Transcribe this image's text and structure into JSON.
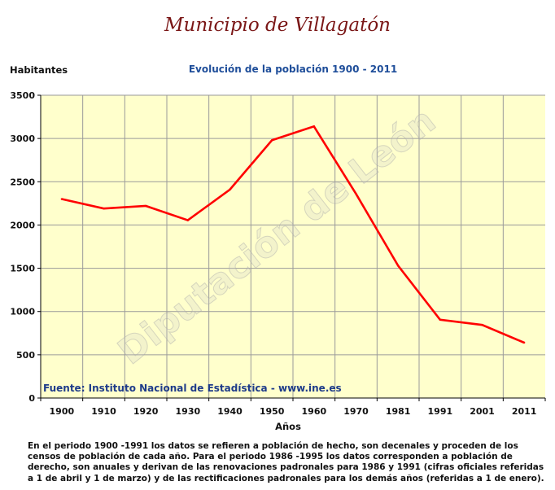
{
  "title": "Municipio de Villagatón",
  "watermark": "Diputación de León",
  "footnote": "En el periodo 1900 -1991 los datos se refieren a población de hecho, son decenales y proceden de los censos de población de cada año. Para el periodo 1986 -1995 los datos corresponden a población de derecho, son anuales y derivan de las renovaciones padronales para 1986 y 1991 (cifras oficiales referidas a 1 de abril y 1 de marzo) y de las rectificaciones padronales para los demás años (referidas a 1 de enero).",
  "colors": {
    "title": "#7a1616",
    "subtitle": "#1f4e9a",
    "source": "#1f3c8a",
    "plot_bg": "#ffffcc",
    "line": "#ff0000",
    "grid": "#9a9a9a"
  },
  "chart_data": {
    "type": "line",
    "title": "Evolución de la población 1900 - 2011",
    "xlabel": "Años",
    "ylabel": "Habitantes",
    "categories": [
      "1900",
      "1910",
      "1920",
      "1930",
      "1940",
      "1950",
      "1960",
      "1970",
      "1981",
      "1991",
      "2001",
      "2011"
    ],
    "series": [
      {
        "values": [
          2300,
          2190,
          2220,
          2055,
          2410,
          2980,
          3140,
          2360,
          1530,
          905,
          845,
          640
        ]
      }
    ],
    "ylim": [
      0,
      3500
    ],
    "yticks": [
      "0",
      "500",
      "1000",
      "1500",
      "2000",
      "2500",
      "3000",
      "3500"
    ],
    "grid": true,
    "source": "Fuente: Instituto Nacional de Estadística - www.ine.es"
  }
}
